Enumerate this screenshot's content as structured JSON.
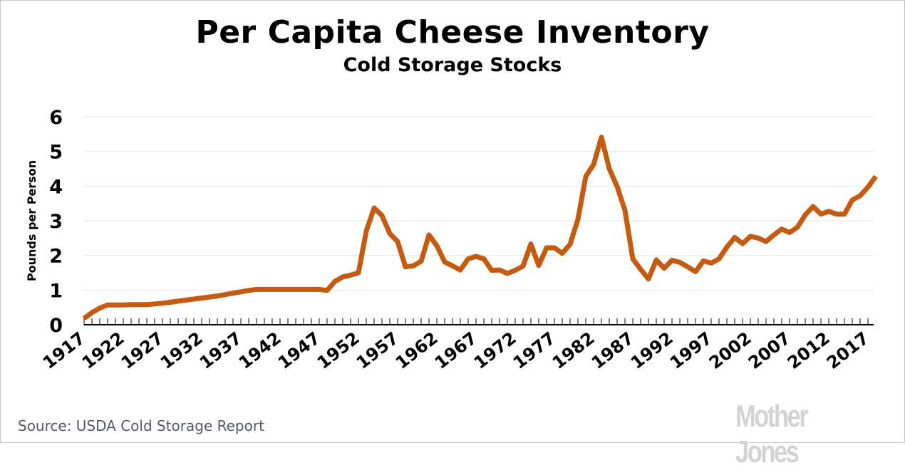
{
  "chart_data": {
    "type": "line",
    "title": "Per Capita Cheese Inventory",
    "subtitle": "Cold Storage Stocks",
    "xlabel": "",
    "ylabel": "Pounds per Person",
    "ylim": [
      0,
      6
    ],
    "xlim": [
      1917,
      2018
    ],
    "grid": true,
    "y_ticks": [
      "0",
      "1",
      "2",
      "3",
      "4",
      "5",
      "6"
    ],
    "x_ticks": [
      "1917",
      "1922",
      "1927",
      "1932",
      "1937",
      "1942",
      "1947",
      "1952",
      "1957",
      "1962",
      "1967",
      "1972",
      "1977",
      "1982",
      "1987",
      "1992",
      "1997",
      "2002",
      "2007",
      "2012",
      "2017"
    ],
    "series": [
      {
        "name": "Pounds per Person",
        "color": "#c55a11",
        "start_year": 1917,
        "values": [
          0.18,
          0.35,
          0.48,
          0.57,
          0.57,
          0.57,
          0.58,
          0.58,
          0.58,
          0.6,
          0.62,
          0.65,
          0.68,
          0.71,
          0.74,
          0.77,
          0.8,
          0.83,
          0.87,
          0.91,
          0.95,
          0.99,
          1.02,
          1.02,
          1.02,
          1.02,
          1.02,
          1.02,
          1.02,
          1.02,
          1.02,
          0.99,
          1.25,
          1.38,
          1.43,
          1.5,
          2.7,
          3.37,
          3.15,
          2.63,
          2.4,
          1.67,
          1.7,
          1.83,
          2.59,
          2.28,
          1.81,
          1.7,
          1.58,
          1.9,
          1.97,
          1.9,
          1.57,
          1.58,
          1.48,
          1.57,
          1.69,
          2.33,
          1.71,
          2.22,
          2.22,
          2.06,
          2.32,
          3.04,
          4.28,
          4.62,
          5.41,
          4.5,
          3.99,
          3.3,
          1.9,
          1.6,
          1.32,
          1.87,
          1.63,
          1.86,
          1.8,
          1.67,
          1.53,
          1.84,
          1.78,
          1.9,
          2.24,
          2.52,
          2.34,
          2.55,
          2.5,
          2.4,
          2.59,
          2.76,
          2.66,
          2.81,
          3.17,
          3.41,
          3.19,
          3.27,
          3.19,
          3.19,
          3.6,
          3.72,
          3.97,
          4.28
        ]
      }
    ],
    "source": "Source: USDA Cold Storage Report",
    "logo": "Mother Jones"
  }
}
